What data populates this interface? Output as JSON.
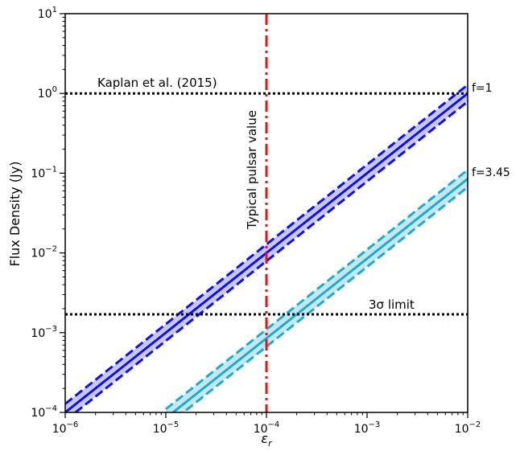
{
  "chart_data": {
    "type": "line",
    "xscale": "log",
    "yscale": "log",
    "xlim": [
      1e-06,
      0.01
    ],
    "ylim": [
      0.0001,
      10
    ],
    "xlabel_base": "ε",
    "xlabel_sub": "r",
    "ylabel": "Flux Density (Jy)",
    "grid": false,
    "x_ticks": [
      {
        "value": 1e-06,
        "base": "10",
        "exp": "−6"
      },
      {
        "value": 1e-05,
        "base": "10",
        "exp": "−5"
      },
      {
        "value": 0.0001,
        "base": "10",
        "exp": "−4"
      },
      {
        "value": 0.001,
        "base": "10",
        "exp": "−3"
      },
      {
        "value": 0.01,
        "base": "10",
        "exp": "−2"
      }
    ],
    "y_ticks": [
      {
        "value": 0.0001,
        "base": "10",
        "exp": "−4"
      },
      {
        "value": 0.001,
        "base": "10",
        "exp": "−3"
      },
      {
        "value": 0.01,
        "base": "10",
        "exp": "−2"
      },
      {
        "value": 0.1,
        "base": "10",
        "exp": "−1"
      },
      {
        "value": 1,
        "base": "10",
        "exp": "0"
      },
      {
        "value": 10,
        "base": "10",
        "exp": "1"
      }
    ],
    "series": [
      {
        "label": "f=1",
        "color": "#1010e0",
        "fill": "#c8c8f8",
        "x": [
          1e-06,
          0.01
        ],
        "center": [
          0.0001,
          1.0
        ],
        "upper": [
          0.000128,
          1.28
        ],
        "lower": [
          7.9e-05,
          0.79
        ]
      },
      {
        "label": "f=3.45",
        "color": "#22aacc",
        "fill": "#c4e8f0",
        "x": [
          1e-05,
          0.01
        ],
        "center": [
          8.5e-05,
          0.085
        ],
        "upper": [
          0.00011,
          0.11
        ],
        "lower": [
          6.7e-05,
          0.067
        ]
      }
    ],
    "hlines": [
      {
        "y": 1.0,
        "label": "Kaplan et al. (2015)",
        "color": "#000000",
        "style": "dotted"
      },
      {
        "y": 0.0017,
        "label": "3σ limit",
        "color": "#000000",
        "style": "dotted"
      }
    ],
    "vlines": [
      {
        "x": 0.0001,
        "label": "Typical pulsar value",
        "color": "#ee1111",
        "style": "dashdot"
      }
    ]
  }
}
